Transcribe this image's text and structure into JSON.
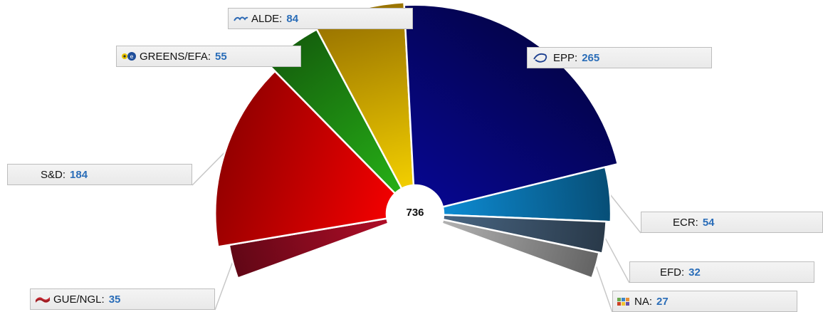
{
  "chart_data": {
    "type": "pie",
    "variant": "semicircle",
    "total_label": "736",
    "slices": [
      {
        "name": "GUE/NGL",
        "value": 35,
        "color": "#8b0a1f"
      },
      {
        "name": "S&D",
        "value": 184,
        "color": "#d40000"
      },
      {
        "name": "GREENS/EFA",
        "value": 55,
        "color": "#1e8a12"
      },
      {
        "name": "ALDE",
        "value": 84,
        "color": "#d9a300"
      },
      {
        "name": "EPP",
        "value": 265,
        "color": "#05056e"
      },
      {
        "name": "ECR",
        "value": 54,
        "color": "#0a6fa8"
      },
      {
        "name": "EFD",
        "value": 32,
        "color": "#3a5168"
      },
      {
        "name": "NA",
        "value": 27,
        "color": "#8e8e8e"
      }
    ]
  },
  "labels": [
    {
      "id": "gue",
      "name": "GUE/NGL:",
      "value": "35",
      "icon": "gue-ngl-flag-icon"
    },
    {
      "id": "sd",
      "name": "S&D:",
      "value": "184",
      "icon": ""
    },
    {
      "id": "greens",
      "name": "GREENS/EFA:",
      "value": "55",
      "icon": "greens-efa-logo-icon"
    },
    {
      "id": "alde",
      "name": "ALDE:",
      "value": "84",
      "icon": "alde-logo-icon"
    },
    {
      "id": "epp",
      "name": "EPP:",
      "value": "265",
      "icon": "epp-logo-icon"
    },
    {
      "id": "ecr",
      "name": "ECR:",
      "value": "54",
      "icon": ""
    },
    {
      "id": "efd",
      "name": "EFD:",
      "value": "32",
      "icon": ""
    },
    {
      "id": "na",
      "name": "NA:",
      "value": "27",
      "icon": "na-logo-icon"
    }
  ]
}
